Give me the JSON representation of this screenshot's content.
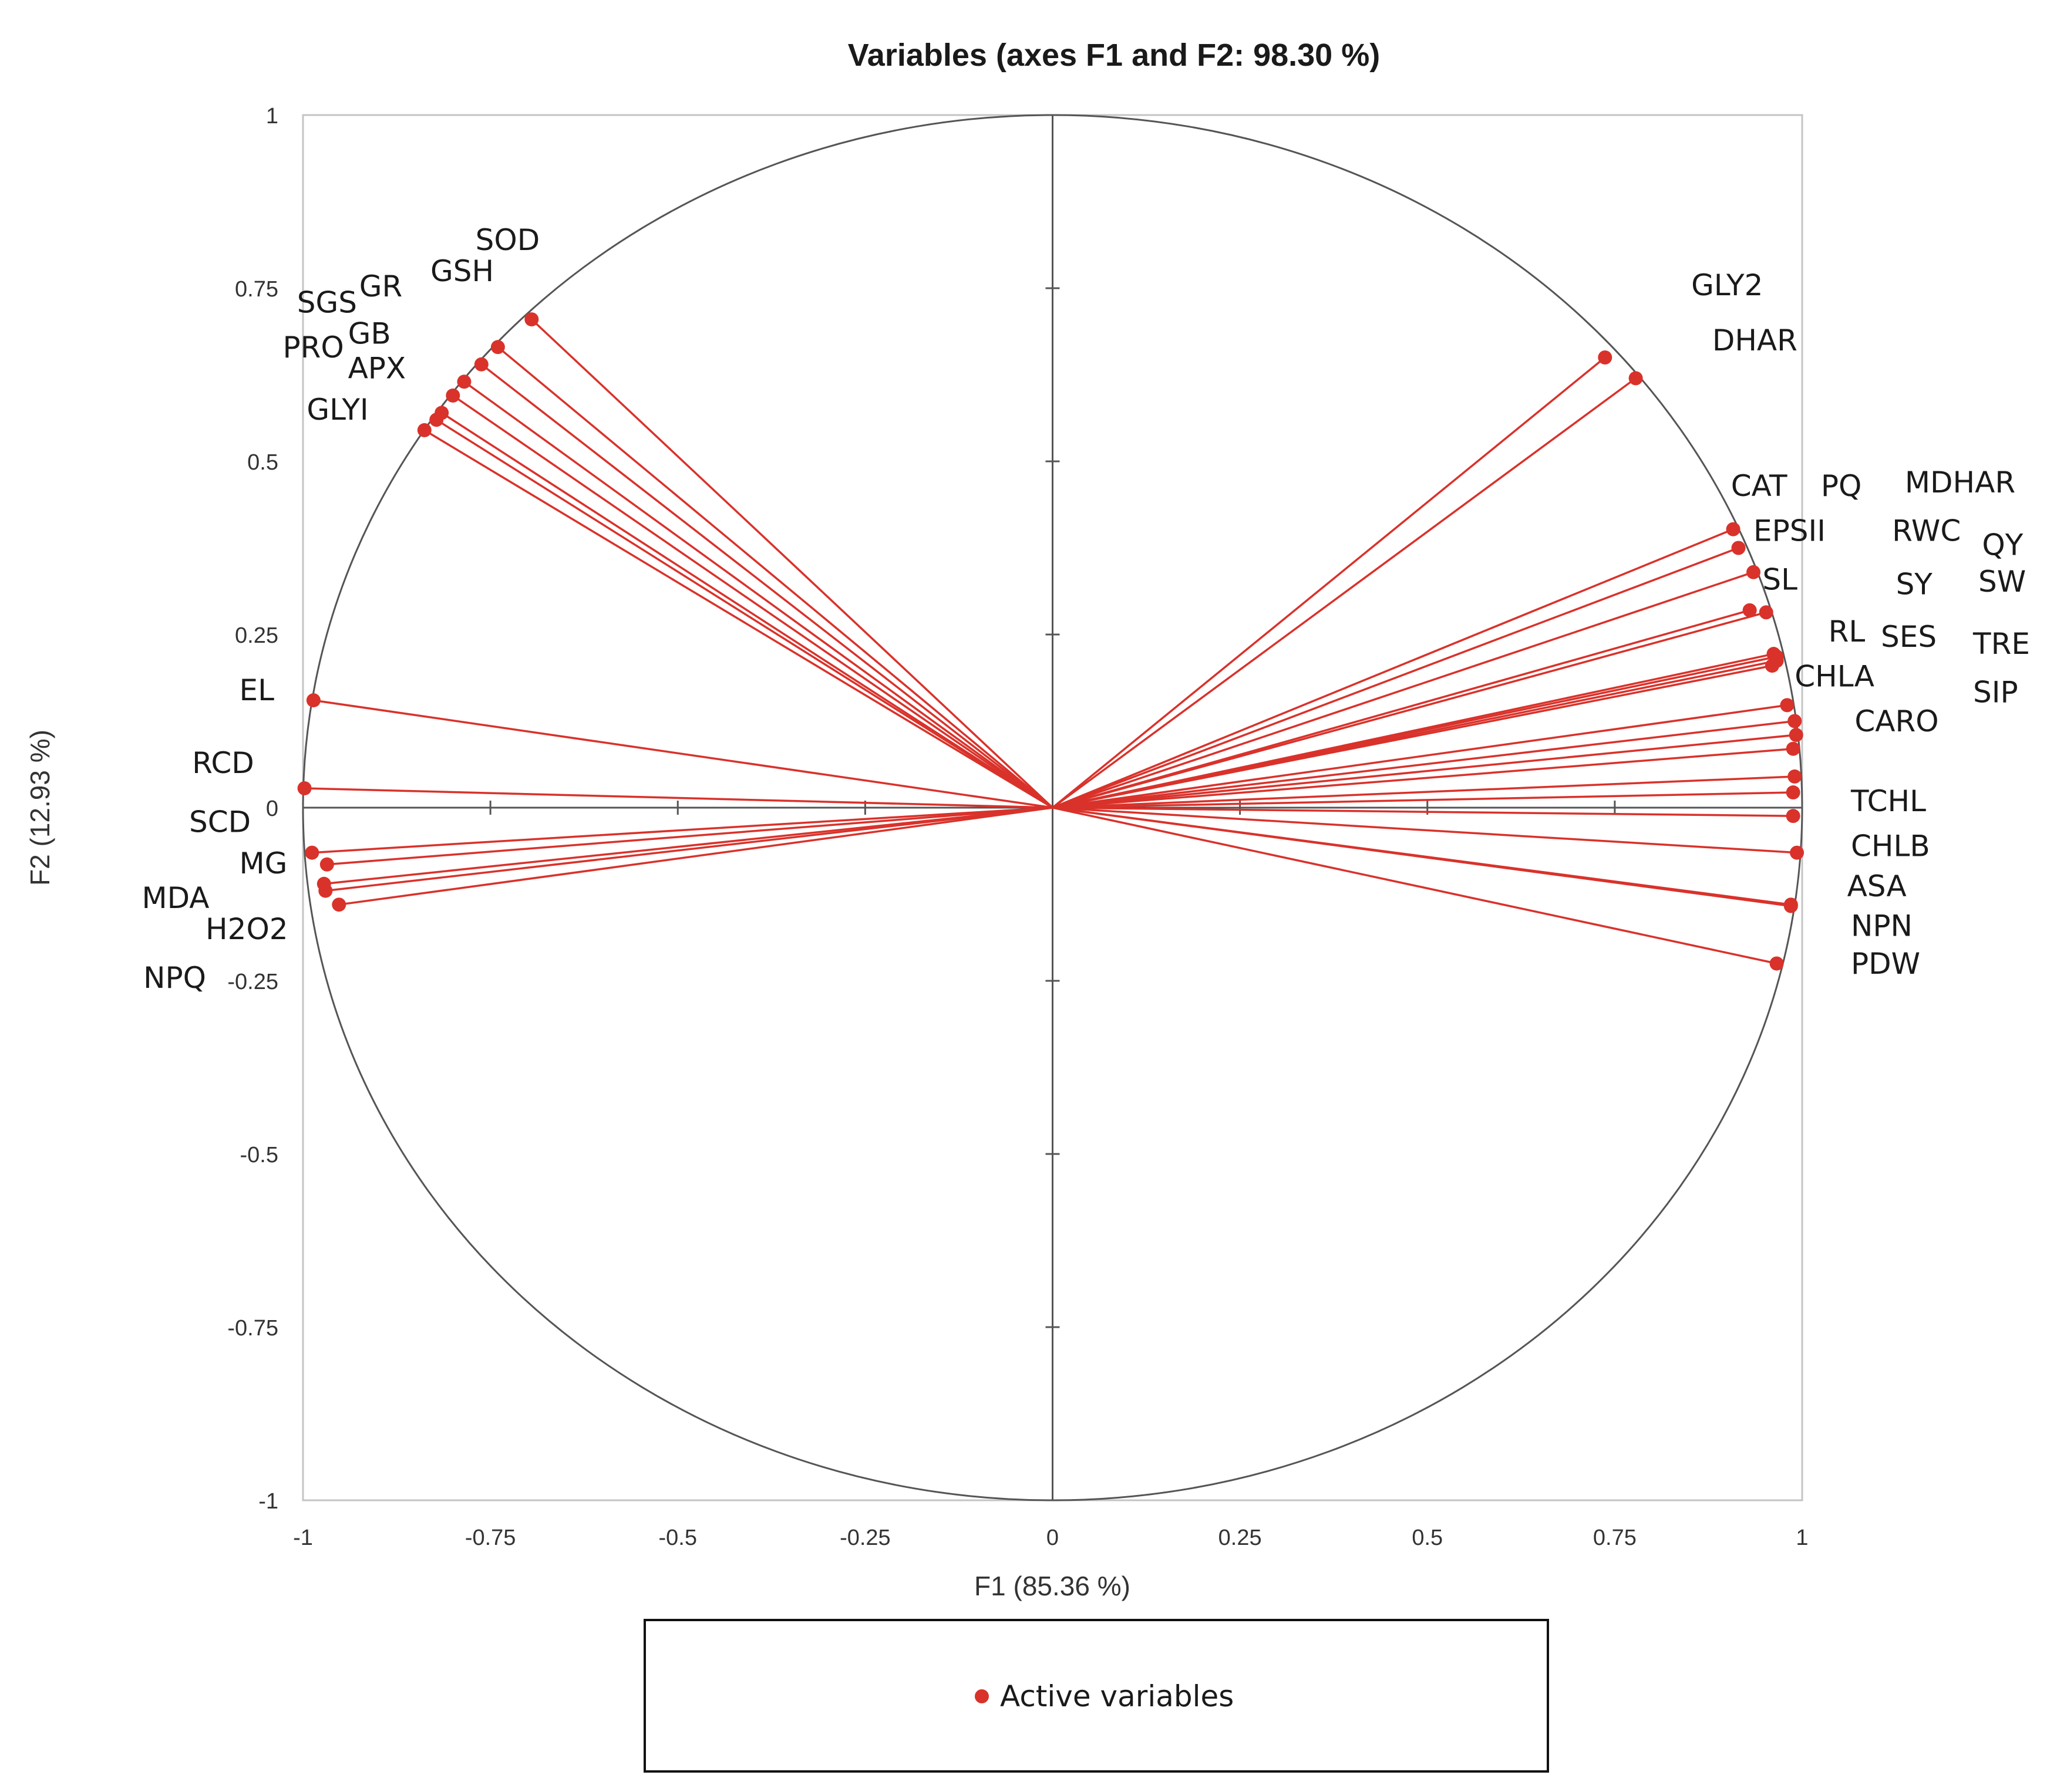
{
  "chart_data": {
    "type": "scatter",
    "subtype": "pca-correlation-circle",
    "title": "Variables (axes F1 and F2: 98.30 %)",
    "xlabel": "F1 (85.36 %)",
    "ylabel": "F2 (12.93 %)",
    "xlim": [
      -1,
      1
    ],
    "ylim": [
      -1,
      1
    ],
    "x_ticks": [
      "-1",
      "-0.75",
      "-0.5",
      "-0.25",
      "0",
      "0.25",
      "0.5",
      "0.75",
      "1"
    ],
    "y_ticks": [
      "1",
      "0.75",
      "0.5",
      "0.25",
      "0",
      "-0.25",
      "-0.5",
      "-0.75",
      "-1"
    ],
    "series_color": "#d9322b",
    "legend": {
      "label": "Active variables",
      "placement": "bottom"
    },
    "points": [
      {
        "name": "SOD",
        "x": -0.695,
        "y": 0.705
      },
      {
        "name": "GSH",
        "x": -0.74,
        "y": 0.665
      },
      {
        "name": "GR",
        "x": -0.762,
        "y": 0.64
      },
      {
        "name": "SGS",
        "x": -0.785,
        "y": 0.615
      },
      {
        "name": "GB",
        "x": -0.8,
        "y": 0.595
      },
      {
        "name": "APX",
        "x": -0.815,
        "y": 0.57
      },
      {
        "name": "PRO",
        "x": -0.822,
        "y": 0.56
      },
      {
        "name": "GLYI",
        "x": -0.838,
        "y": 0.545
      },
      {
        "name": "EL",
        "x": -0.986,
        "y": 0.155
      },
      {
        "name": "RCD",
        "x": -0.998,
        "y": 0.028
      },
      {
        "name": "SCD",
        "x": -0.988,
        "y": -0.065
      },
      {
        "name": "MG",
        "x": -0.968,
        "y": -0.082
      },
      {
        "name": "MDA",
        "x": -0.972,
        "y": -0.11
      },
      {
        "name": "H2O2",
        "x": -0.97,
        "y": -0.12
      },
      {
        "name": "NPQ",
        "x": -0.952,
        "y": -0.14
      },
      {
        "name": "GLY2",
        "x": 0.737,
        "y": 0.65
      },
      {
        "name": "DHAR",
        "x": 0.778,
        "y": 0.62
      },
      {
        "name": "CAT",
        "x": 0.908,
        "y": 0.402
      },
      {
        "name": "PQ",
        "x": 0.915,
        "y": 0.375
      },
      {
        "name": "EPSII",
        "x": 0.935,
        "y": 0.34
      },
      {
        "name": "MDHAR",
        "x": 0.93,
        "y": 0.285
      },
      {
        "name": "RWC",
        "x": 0.952,
        "y": 0.282
      },
      {
        "name": "SL",
        "x": 0.962,
        "y": 0.222
      },
      {
        "name": "QY",
        "x": 0.966,
        "y": 0.218
      },
      {
        "name": "SY",
        "x": 0.966,
        "y": 0.212
      },
      {
        "name": "SW",
        "x": 0.96,
        "y": 0.205
      },
      {
        "name": "RL",
        "x": 0.98,
        "y": 0.148
      },
      {
        "name": "SES",
        "x": 0.99,
        "y": 0.125
      },
      {
        "name": "TRE",
        "x": 0.992,
        "y": 0.105
      },
      {
        "name": "CHLA",
        "x": 0.988,
        "y": 0.085
      },
      {
        "name": "SIP",
        "x": 0.99,
        "y": 0.045
      },
      {
        "name": "CARO",
        "x": 0.988,
        "y": 0.022
      },
      {
        "name": "TCHL",
        "x": 0.988,
        "y": -0.012
      },
      {
        "name": "CHLB",
        "x": 0.993,
        "y": -0.065
      },
      {
        "name": "ASA",
        "x": 0.985,
        "y": -0.14
      },
      {
        "name": "NPN",
        "x": 0.985,
        "y": -0.142
      },
      {
        "name": "PDW",
        "x": 0.966,
        "y": -0.225
      }
    ],
    "labels": [
      {
        "text": "SOD",
        "x": -0.77,
        "y": 0.805
      },
      {
        "text": "GSH",
        "x": -0.83,
        "y": 0.76
      },
      {
        "text": "GR",
        "x": -0.925,
        "y": 0.738
      },
      {
        "text": "SGS",
        "x": -1.008,
        "y": 0.715
      },
      {
        "text": "GB",
        "x": -0.94,
        "y": 0.67
      },
      {
        "text": "PRO",
        "x": -1.027,
        "y": 0.65
      },
      {
        "text": "APX",
        "x": -0.94,
        "y": 0.62
      },
      {
        "text": "GLYI",
        "x": -0.995,
        "y": 0.56
      },
      {
        "text": "EL",
        "x": -1.085,
        "y": 0.155
      },
      {
        "text": "RCD",
        "x": -1.148,
        "y": 0.05
      },
      {
        "text": "SCD",
        "x": -1.152,
        "y": -0.035
      },
      {
        "text": "MG",
        "x": -1.085,
        "y": -0.095
      },
      {
        "text": "MDA",
        "x": -1.215,
        "y": -0.145
      },
      {
        "text": "H2O2",
        "x": -1.13,
        "y": -0.19
      },
      {
        "text": "NPQ",
        "x": -1.213,
        "y": -0.26
      },
      {
        "text": "GLY2",
        "x": 0.852,
        "y": 0.74
      },
      {
        "text": "DHAR",
        "x": 0.88,
        "y": 0.66
      },
      {
        "text": "CAT",
        "x": 0.905,
        "y": 0.45
      },
      {
        "text": "PQ",
        "x": 1.025,
        "y": 0.45
      },
      {
        "text": "MDHAR",
        "x": 1.137,
        "y": 0.455
      },
      {
        "text": "EPSII",
        "x": 0.935,
        "y": 0.385
      },
      {
        "text": "RWC",
        "x": 1.12,
        "y": 0.385
      },
      {
        "text": "QY",
        "x": 1.24,
        "y": 0.365
      },
      {
        "text": "SL",
        "x": 0.947,
        "y": 0.315
      },
      {
        "text": "SY",
        "x": 1.125,
        "y": 0.308
      },
      {
        "text": "SW",
        "x": 1.235,
        "y": 0.312
      },
      {
        "text": "RL",
        "x": 1.035,
        "y": 0.24
      },
      {
        "text": "SES",
        "x": 1.105,
        "y": 0.232
      },
      {
        "text": "TRE",
        "x": 1.228,
        "y": 0.222
      },
      {
        "text": "CHLA",
        "x": 0.99,
        "y": 0.175
      },
      {
        "text": "SIP",
        "x": 1.228,
        "y": 0.152
      },
      {
        "text": "CARO",
        "x": 1.07,
        "y": 0.11
      },
      {
        "text": "TCHL",
        "x": 1.065,
        "y": -0.005
      },
      {
        "text": "CHLB",
        "x": 1.065,
        "y": -0.07
      },
      {
        "text": "ASA",
        "x": 1.06,
        "y": -0.128
      },
      {
        "text": "NPN",
        "x": 1.065,
        "y": -0.185
      },
      {
        "text": "PDW",
        "x": 1.065,
        "y": -0.24
      }
    ]
  }
}
